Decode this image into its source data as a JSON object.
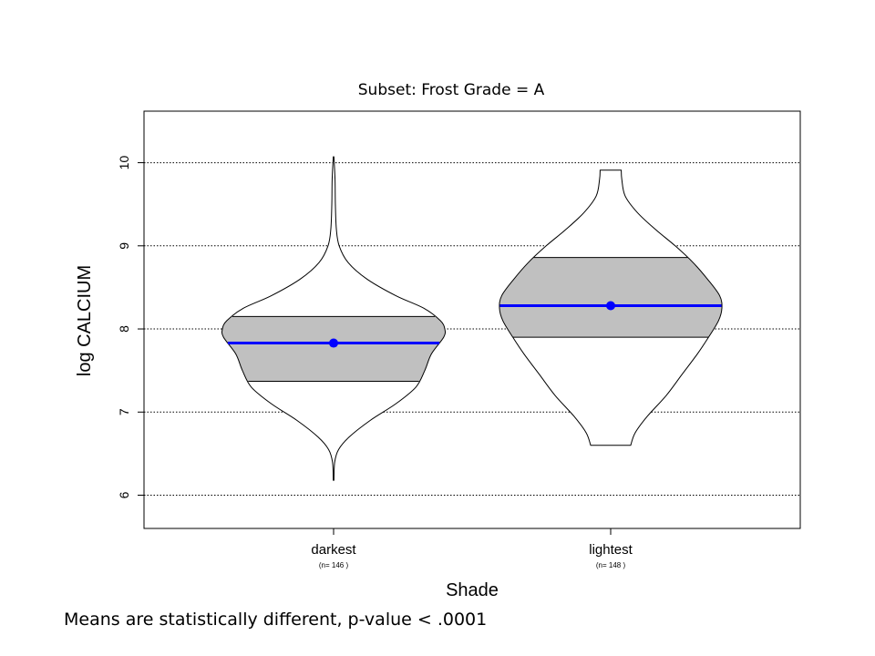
{
  "chart_data": {
    "type": "violin",
    "title": "Subset:  Frost Grade = A",
    "xlabel": "Shade",
    "ylabel": "log CALCIUM",
    "ylim": [
      5.6,
      10.62
    ],
    "yticks": [
      "6",
      "7",
      "8",
      "9",
      "10"
    ],
    "ytick_values": [
      6,
      7,
      8,
      9,
      10
    ],
    "grid": "horizontal dotted",
    "categories": [
      "darkest",
      "lightest"
    ],
    "n_labels": [
      "(n= 146 )",
      "(n= 148 )"
    ],
    "groups": [
      {
        "name": "darkest",
        "n": 146,
        "mean": 7.83,
        "box_low": 7.37,
        "box_high": 8.15,
        "min": 6.18,
        "max": 10.07,
        "density": [
          [
            6.18,
            0.003
          ],
          [
            6.4,
            0.01
          ],
          [
            6.55,
            0.045
          ],
          [
            6.7,
            0.14
          ],
          [
            6.9,
            0.33
          ],
          [
            7.1,
            0.56
          ],
          [
            7.3,
            0.74
          ],
          [
            7.5,
            0.82
          ],
          [
            7.7,
            0.88
          ],
          [
            7.9,
            0.99
          ],
          [
            8.0,
            1.0
          ],
          [
            8.1,
            0.96
          ],
          [
            8.25,
            0.81
          ],
          [
            8.4,
            0.56
          ],
          [
            8.6,
            0.3
          ],
          [
            8.8,
            0.13
          ],
          [
            9.0,
            0.05
          ],
          [
            9.2,
            0.025
          ],
          [
            9.5,
            0.016
          ],
          [
            9.8,
            0.013
          ],
          [
            10.07,
            0.003
          ]
        ]
      },
      {
        "name": "lightest",
        "n": 148,
        "mean": 8.28,
        "box_low": 7.9,
        "box_high": 8.86,
        "min": 6.6,
        "max": 9.91,
        "density": [
          [
            6.6,
            0.18
          ],
          [
            6.75,
            0.22
          ],
          [
            6.95,
            0.33
          ],
          [
            7.2,
            0.5
          ],
          [
            7.45,
            0.64
          ],
          [
            7.7,
            0.78
          ],
          [
            7.9,
            0.88
          ],
          [
            8.1,
            0.97
          ],
          [
            8.25,
            1.0
          ],
          [
            8.4,
            0.98
          ],
          [
            8.6,
            0.87
          ],
          [
            8.8,
            0.74
          ],
          [
            9.0,
            0.58
          ],
          [
            9.2,
            0.4
          ],
          [
            9.4,
            0.24
          ],
          [
            9.6,
            0.13
          ],
          [
            9.8,
            0.1
          ],
          [
            9.91,
            0.095
          ]
        ]
      }
    ],
    "colors": {
      "box_fill": "#c0c0c0",
      "mean_line": "#0000ff",
      "outline": "#000000",
      "grid": "#000000"
    }
  },
  "footnote": "Means are statistically different,   p-value  < .0001"
}
